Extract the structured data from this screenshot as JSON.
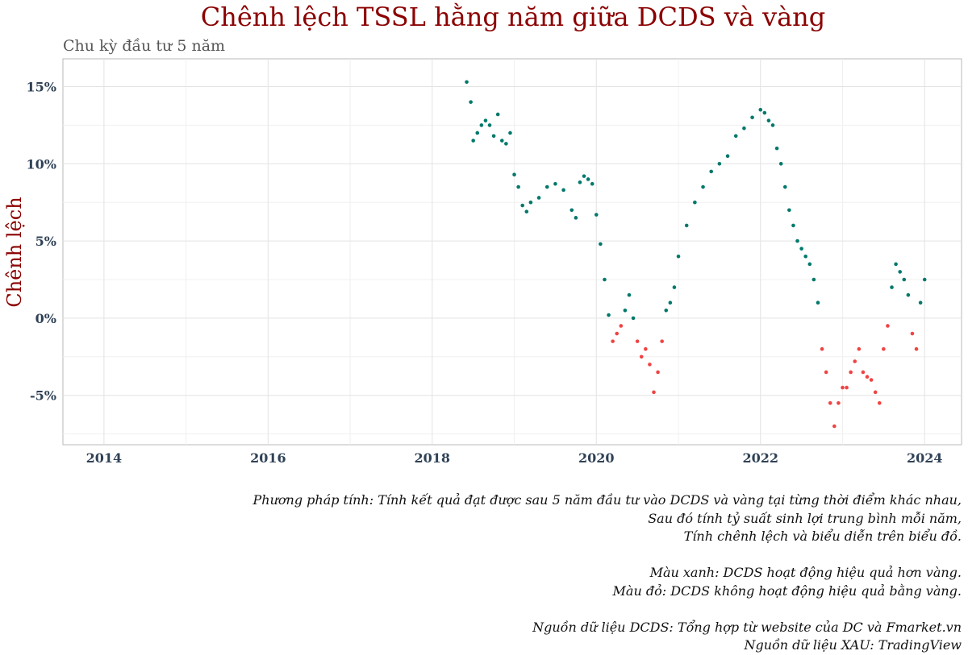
{
  "chart_data": {
    "type": "scatter",
    "title": "Chênh lệch TSSL hằng năm giữa DCDS và vàng",
    "subtitle": "Chu kỳ đầu tư 5 năm",
    "xlabel": "",
    "ylabel": "Chênh lệch",
    "xlim": [
      2013.5,
      2024.45
    ],
    "ylim": [
      -8.2,
      16.8
    ],
    "x_ticks": [
      2014,
      2016,
      2018,
      2020,
      2022,
      2024
    ],
    "x_tick_labels": [
      "2014",
      "2016",
      "2018",
      "2020",
      "2022",
      "2024"
    ],
    "y_ticks": [
      -5,
      0,
      5,
      10,
      15
    ],
    "y_tick_labels": [
      "-5%",
      "0%",
      "5%",
      "10%",
      "15%"
    ],
    "grid": true,
    "colors": {
      "positive": "#00796b",
      "negative": "#ef4444"
    },
    "series": [
      {
        "x": [
          2018.42,
          2018.47,
          2018.5,
          2018.55,
          2018.6,
          2018.65,
          2018.7,
          2018.75,
          2018.8,
          2018.85,
          2018.9,
          2018.95,
          2019.0,
          2019.05,
          2019.1,
          2019.15,
          2019.2,
          2019.3,
          2019.4,
          2019.5,
          2019.6,
          2019.7,
          2019.75,
          2019.8,
          2019.85,
          2019.9,
          2019.95,
          2020.0,
          2020.05,
          2020.1,
          2020.15,
          2020.2,
          2020.25,
          2020.3,
          2020.35,
          2020.4,
          2020.45,
          2020.5,
          2020.55,
          2020.6,
          2020.65,
          2020.7,
          2020.75,
          2020.8,
          2020.85,
          2020.9,
          2020.95,
          2021.0,
          2021.1,
          2021.2,
          2021.3,
          2021.4,
          2021.5,
          2021.6,
          2021.7,
          2021.8,
          2021.9,
          2022.0,
          2022.05,
          2022.1,
          2022.15,
          2022.2,
          2022.25,
          2022.3,
          2022.35,
          2022.4,
          2022.45,
          2022.5,
          2022.55,
          2022.6,
          2022.65,
          2022.7,
          2022.75,
          2022.8,
          2022.85,
          2022.9,
          2022.95,
          2023.0,
          2023.05,
          2023.1,
          2023.15,
          2023.2,
          2023.25,
          2023.3,
          2023.35,
          2023.4,
          2023.45,
          2023.5,
          2023.55,
          2023.6,
          2023.65,
          2023.7,
          2023.75,
          2023.8,
          2023.85,
          2023.9,
          2023.95,
          2024.0
        ],
        "y": [
          15.3,
          14.0,
          11.5,
          12.0,
          12.5,
          12.8,
          12.5,
          11.8,
          13.2,
          11.5,
          11.3,
          12.0,
          9.3,
          8.5,
          7.3,
          6.9,
          7.5,
          7.8,
          8.5,
          8.7,
          8.3,
          7.0,
          6.5,
          8.8,
          9.2,
          9.0,
          8.7,
          6.7,
          4.8,
          2.5,
          0.2,
          -1.5,
          -1.0,
          -0.5,
          0.5,
          1.5,
          0.0,
          -1.5,
          -2.5,
          -2.0,
          -3.0,
          -4.8,
          -3.5,
          -1.5,
          0.5,
          1.0,
          2.0,
          4.0,
          6.0,
          7.5,
          8.5,
          9.5,
          10.0,
          10.5,
          11.8,
          12.3,
          13.0,
          13.5,
          13.3,
          12.8,
          12.5,
          11.0,
          10.0,
          8.5,
          7.0,
          6.0,
          5.0,
          4.5,
          4.0,
          3.5,
          2.5,
          1.0,
          -2.0,
          -3.5,
          -5.5,
          -7.0,
          -5.5,
          -4.5,
          -4.5,
          -3.5,
          -2.8,
          -2.0,
          -3.5,
          -3.8,
          -4.0,
          -4.8,
          -5.5,
          -2.0,
          -0.5,
          2.0,
          3.5,
          3.0,
          2.5,
          1.5,
          -1.0,
          -2.0,
          1.0,
          2.5
        ]
      }
    ]
  },
  "notes": [
    "Phương pháp tính: Tính kết quả đạt được sau 5 năm đầu tư vào DCDS và vàng tại từng thời điểm khác nhau,",
    "Sau đó tính tỷ suất sinh lợi trung bình mỗi năm,",
    "Tính chênh lệch và biểu diễn trên biểu đồ.",
    "",
    "Màu xanh: DCDS hoạt động hiệu quả hơn vàng.",
    "Màu đỏ: DCDS không hoạt động hiệu quả bằng vàng.",
    "",
    "Nguồn dữ liệu DCDS: Tổng hợp từ website của DC và Fmarket.vn",
    "Nguồn dữ liệu XAU: TradingView"
  ]
}
